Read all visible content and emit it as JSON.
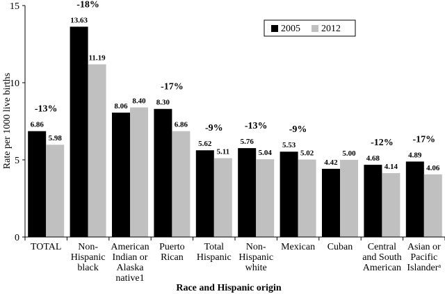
{
  "chart_data": {
    "type": "bar",
    "ylabel": "Rate per 1000 live births",
    "xlabel": "Race and Hispanic origin",
    "ylim": [
      0,
      15
    ],
    "yticks": [
      "0",
      "5",
      "10",
      "15"
    ],
    "grid": false,
    "legend_position": "top-right",
    "categories": [
      [
        "TOTAL"
      ],
      [
        "Non-",
        "Hispanic",
        "black"
      ],
      [
        "American",
        "Indian or",
        "Alaska",
        "native1"
      ],
      [
        "Puerto",
        "Rican"
      ],
      [
        "Total",
        "Hispanic"
      ],
      [
        "Non-",
        "Hispanic",
        "white"
      ],
      [
        "Mexican"
      ],
      [
        "Cuban"
      ],
      [
        "Central",
        "and South",
        "American"
      ],
      [
        "Asian or",
        "Pacific",
        "Islanderᵃ"
      ]
    ],
    "series": [
      {
        "name": "2005",
        "color": "#000000",
        "values": [
          6.86,
          13.63,
          8.06,
          8.3,
          5.62,
          5.76,
          5.53,
          4.42,
          4.68,
          4.89
        ],
        "labels": [
          "6.86",
          "13.63",
          "8.06",
          "8.30",
          "5.62",
          "5.76",
          "5.53",
          "4.42",
          "4.68",
          "4.89"
        ]
      },
      {
        "name": "2012",
        "color": "#c0c0c0",
        "values": [
          5.98,
          11.19,
          8.4,
          6.86,
          5.11,
          5.04,
          5.02,
          5.0,
          4.14,
          4.06
        ],
        "labels": [
          "5.98",
          "11.19",
          "8.40",
          "6.86",
          "5.11",
          "5.04",
          "5.02",
          "5.00",
          "4.14",
          "4.06"
        ]
      }
    ],
    "change_labels": [
      "-13%",
      "-18%",
      "",
      "-17%",
      "-9%",
      "-13%",
      "-9%",
      "",
      "-12%",
      "-17%"
    ]
  }
}
